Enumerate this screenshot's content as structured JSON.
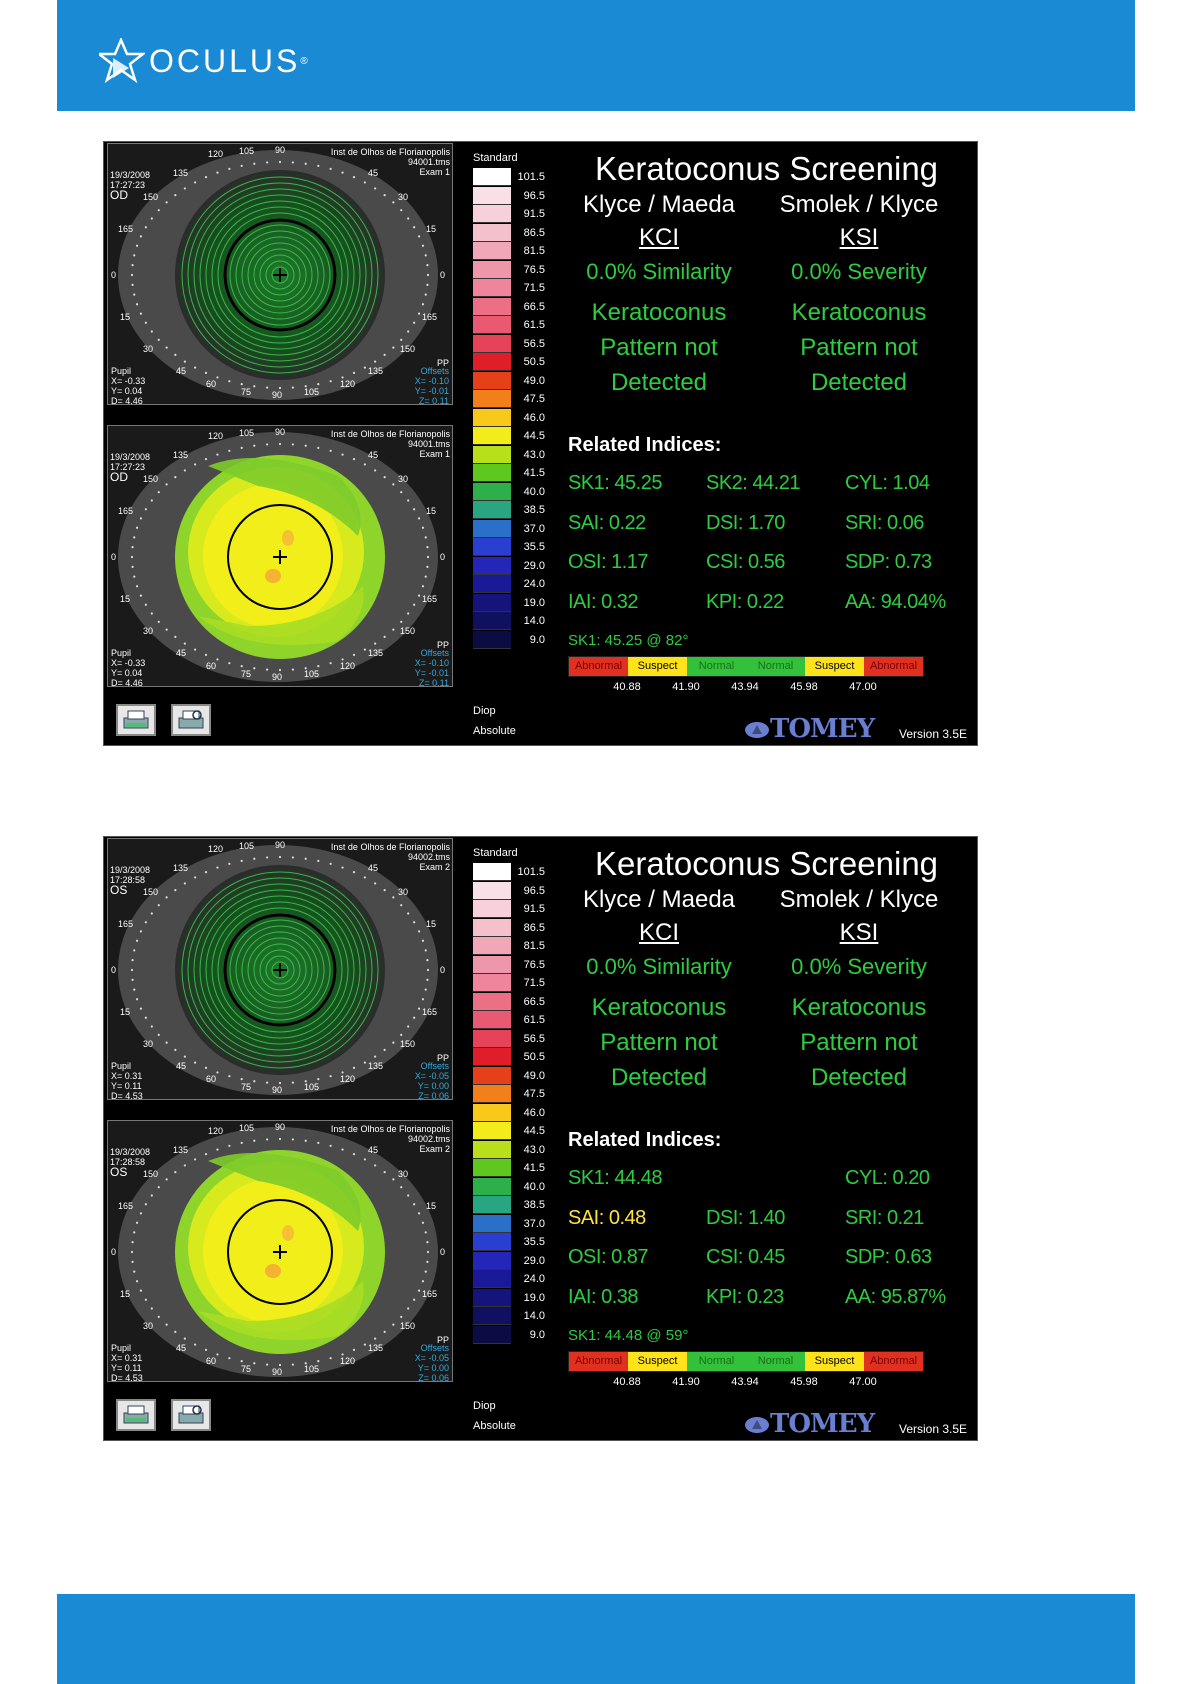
{
  "brand": {
    "name": "OCULUS",
    "reg": "®"
  },
  "panels": [
    {
      "eye": "OD",
      "header": {
        "institution": "Inst de Olhos de Florianopolis",
        "file": "94001.tms",
        "exam": "Exam 1",
        "date": "19/3/2008",
        "time": "17:27:23"
      },
      "pupil": {
        "label": "Pupil",
        "x": "X= -0.33",
        "y": "Y= 0.04",
        "d": "D= 4.46"
      },
      "offsets": {
        "label": "Offsets",
        "x": "X= -0.10",
        "y": "Y= -0.01",
        "z": "Z= 0.11"
      },
      "pp": "PP",
      "kci": {
        "similarity": "0.0% Similarity",
        "result1": "Keratoconus",
        "result2": "Pattern not",
        "result3": "Detected"
      },
      "ksi": {
        "severity": "0.0% Severity",
        "result1": "Keratoconus",
        "result2": "Pattern not",
        "result3": "Detected"
      },
      "indices": {
        "sk1": "SK1: 45.25",
        "sk2": "SK2: 44.21",
        "cyl": "CYL:  1.04",
        "sai": "SAI: 0.22",
        "dsi": "DSI: 1.70",
        "sri": "SRI: 0.06",
        "osi": "OSI: 1.17",
        "csi": "CSI: 0.56",
        "sdp": "SDP: 0.73",
        "iai": "IAI: 0.32",
        "kpi": "KPI: 0.22",
        "aa": "AA: 94.04%"
      },
      "sk1_axis": "SK1: 45.25 @ 82°"
    },
    {
      "eye": "OS",
      "header": {
        "institution": "Inst de Olhos de Florianopolis",
        "file": "94002.tms",
        "exam": "Exam 2",
        "date": "19/3/2008",
        "time": "17:28:58"
      },
      "pupil": {
        "label": "Pupil",
        "x": "X= 0.31",
        "y": "Y= 0.11",
        "d": "D= 4.53"
      },
      "offsets": {
        "label": "Offsets",
        "x": "X= -0.05",
        "y": "Y= 0.00",
        "z": "Z= 0.06"
      },
      "pp": "PP",
      "kci": {
        "similarity": "0.0% Similarity",
        "result1": "Keratoconus",
        "result2": "Pattern not",
        "result3": "Detected"
      },
      "ksi": {
        "severity": "0.0% Severity",
        "result1": "Keratoconus",
        "result2": "Pattern not",
        "result3": "Detected"
      },
      "indices": {
        "sk1": "SK1: 44.48",
        "sk2": "",
        "cyl": "CYL:  0.20",
        "sai": "SAI: 0.48",
        "dsi": "DSI: 1.40",
        "sri": "SRI: 0.21",
        "osi": "OSI: 0.87",
        "csi": "CSI: 0.45",
        "sdp": "SDP: 0.63",
        "iai": "IAI: 0.38",
        "kpi": "KPI: 0.23",
        "aa": "AA: 95.87%"
      },
      "sk1_axis": "SK1: 44.48 @ 59°"
    }
  ],
  "screen": {
    "title": "Keratoconus Screening",
    "left_author": "Klyce / Maeda",
    "right_author": "Smolek / Klyce",
    "kci_label": "KCI",
    "ksi_label": "KSI",
    "related_title": "Related Indices:",
    "bar_segments": [
      "Abnormal",
      "Suspect",
      "Normal",
      "Normal",
      "Suspect",
      "Abnormal"
    ],
    "bar_values": [
      "40.88",
      "41.90",
      "43.94",
      "45.98",
      "47.00"
    ],
    "tomey": "TOMEY",
    "version": "Version 3.5E"
  },
  "scale": {
    "title": "Standard",
    "footer1": "Diop",
    "footer2": "Absolute",
    "values": [
      "101.5",
      "96.5",
      "91.5",
      "86.5",
      "81.5",
      "76.5",
      "71.5",
      "66.5",
      "61.5",
      "56.5",
      "50.5",
      "49.0",
      "47.5",
      "46.0",
      "44.5",
      "43.0",
      "41.5",
      "40.0",
      "38.5",
      "37.0",
      "35.5",
      "29.0",
      "24.0",
      "19.0",
      "14.0",
      "9.0"
    ],
    "colors": [
      "#ffffff",
      "#f8e0e6",
      "#f6d0da",
      "#f3c0cc",
      "#f0a8b8",
      "#ef97aa",
      "#ee859c",
      "#ec6f86",
      "#e95a72",
      "#e6425a",
      "#e01e2a",
      "#e5401a",
      "#f2801a",
      "#f8c81a",
      "#f2ec1a",
      "#b8e01a",
      "#5fc81e",
      "#2db04a",
      "#2aa582",
      "#2a70c8",
      "#2a3fd2",
      "#2426b8",
      "#1a1a98",
      "#14147a",
      "#101060",
      "#0c0c44"
    ],
    "axis_ticks": [
      "120",
      "105",
      "90",
      "45",
      "30",
      "165",
      "15",
      "0",
      "0",
      "15",
      "165",
      "30",
      "150",
      "135",
      "120",
      "105",
      "90",
      "75",
      "60",
      "45",
      "135",
      "150"
    ]
  },
  "chart_data": null
}
